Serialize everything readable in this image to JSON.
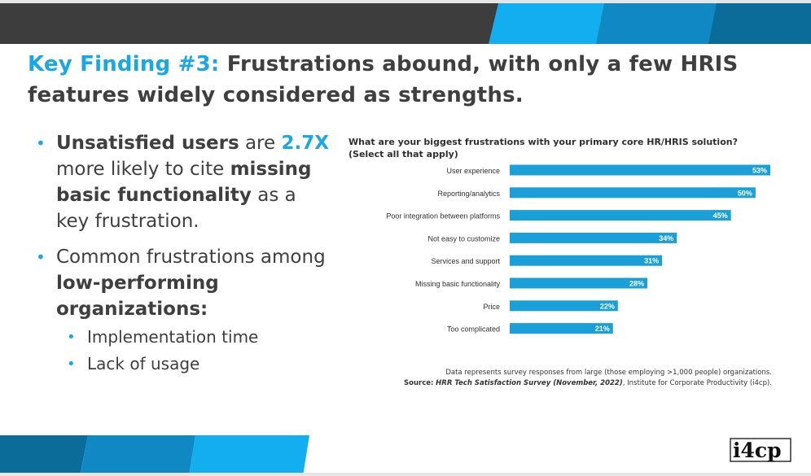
{
  "title": {
    "accent": "Key Finding #3:",
    "rest": "Frustrations abound, with only a few HRIS features widely considered as strengths."
  },
  "bullets": [
    {
      "bold1": "Unsatisfied users",
      "t1": " are ",
      "highlight": "2.7X",
      "t2": " more likely to cite ",
      "bold2": "missing basic functionality",
      "t3": " as a key frustration."
    },
    {
      "t1": "Common frustrations among ",
      "bold1": "low-performing organizations:",
      "sub": [
        "Implementation time",
        "Lack of usage"
      ]
    }
  ],
  "chart_question": "What are your biggest frustrations with your primary core HR/HRIS solution? (Select all that apply)",
  "chart_data": {
    "type": "bar",
    "orientation": "horizontal",
    "title": "What are your biggest frustrations with your primary core HR/HRIS solution? (Select all that apply)",
    "categories": [
      "User experience",
      "Reporting/analytics",
      "Poor integration between platforms",
      "Not easy to customize",
      "Services and support",
      "Missing basic functionality",
      "Price",
      "Too complicated"
    ],
    "values": [
      53,
      50,
      45,
      34,
      31,
      28,
      22,
      21
    ],
    "value_labels": [
      "53%",
      "50%",
      "45%",
      "34%",
      "31%",
      "28%",
      "22%",
      "21%"
    ],
    "xlim": [
      0,
      53
    ],
    "grid": false,
    "bar_color": "#1a9fd9"
  },
  "footnote": {
    "line1": "Data represents survey responses from large (those employing >1,000 people) organizations.",
    "source_label": "Source:",
    "source_title": "HRR Tech Satisfaction Survey (November, 2022)",
    "source_rest": ", Institute for Corporate Productivity (i4cp)."
  },
  "logo_text": "i4cp",
  "colors": {
    "accent": "#1aa7e6",
    "dark_band": "#3d3d3d",
    "band_blue_light": "#12aef0",
    "band_blue_mid": "#0f88c4",
    "band_blue_dark": "#0b6c99"
  }
}
